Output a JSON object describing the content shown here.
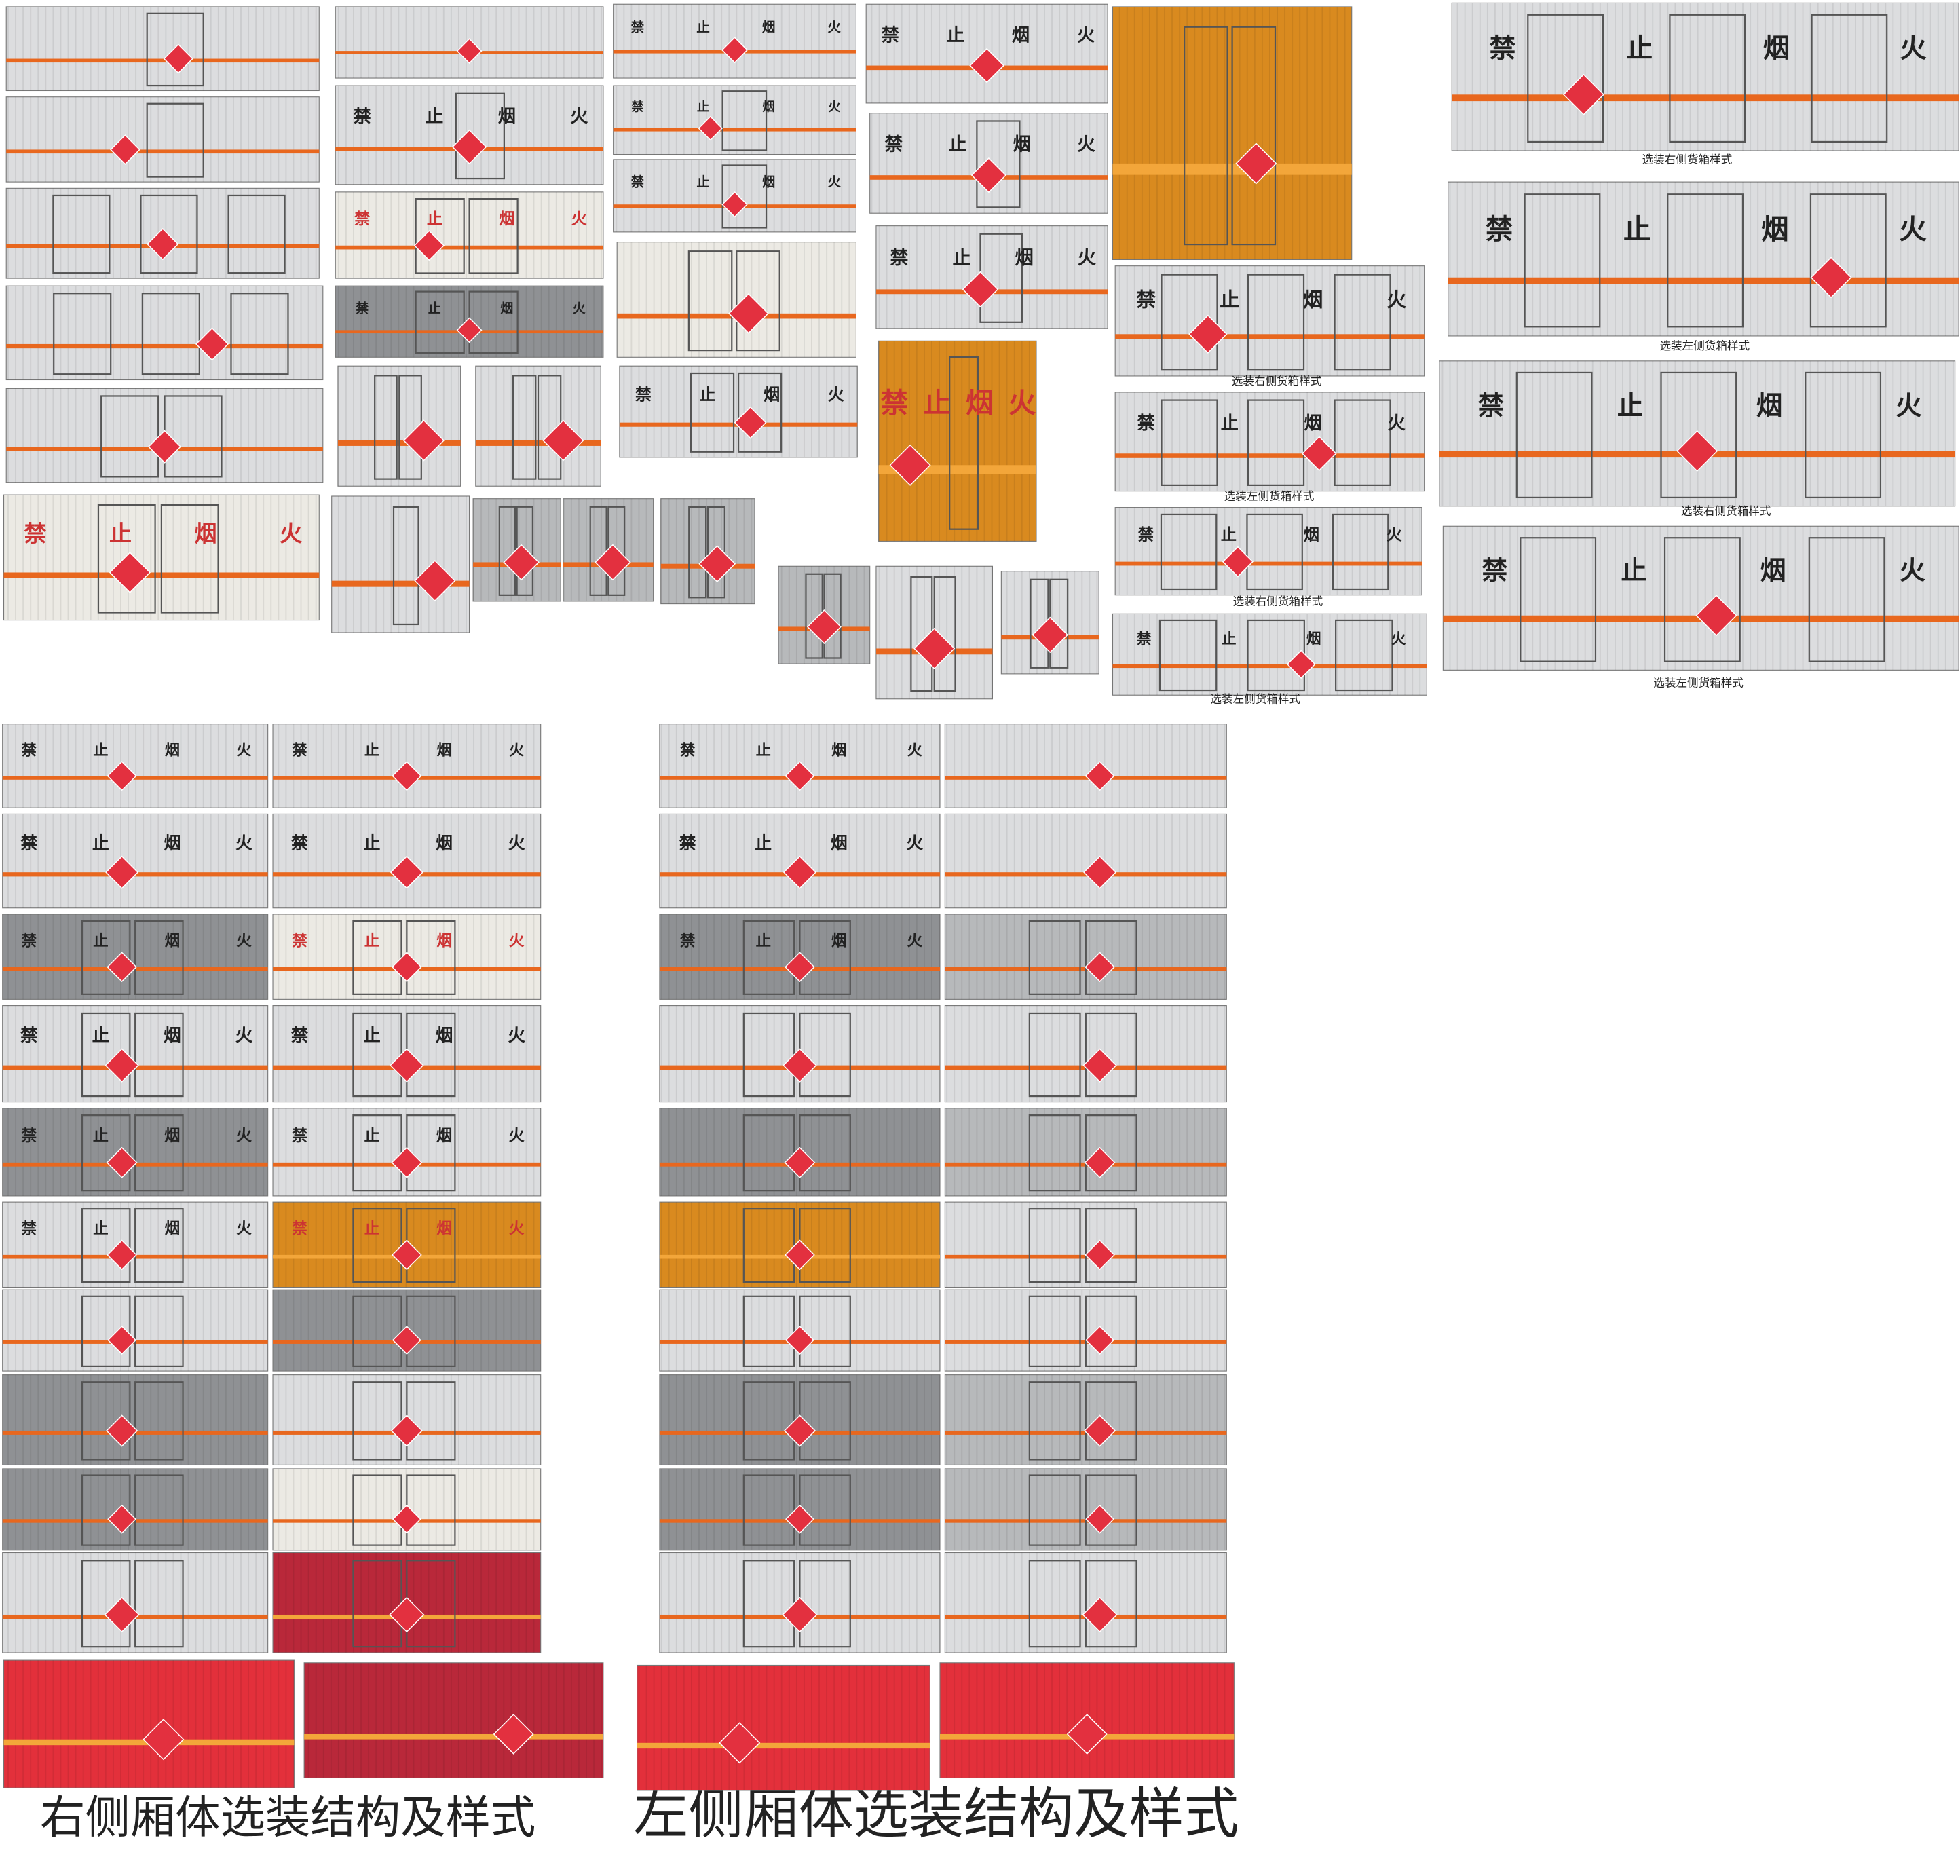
{
  "warning_chars": [
    "禁",
    "止",
    "烟",
    "火"
  ],
  "small_captions": [
    "选装右侧货箱样式",
    "选装左侧货箱样式",
    "选装右侧货箱样式",
    "选装左侧货箱样式",
    "选装右侧货箱样式",
    "选装左侧货箱样式",
    "选装右侧货箱样式",
    "选装左侧货箱样式"
  ],
  "footer": {
    "right_caption": "右侧厢体选装结构及样式",
    "left_caption": "左侧厢体选装结构及样式"
  }
}
